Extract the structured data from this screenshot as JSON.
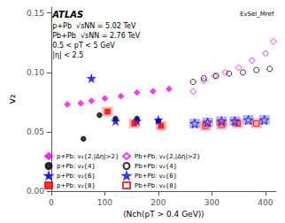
{
  "chart_data": {
    "type": "scatter",
    "xlabel": "⟨Nch(pT > 0.4 GeV)⟩",
    "ylabel": "v₂",
    "xlim": [
      0,
      420
    ],
    "ylim": [
      0,
      0.155
    ],
    "xticks": [
      0,
      100,
      200,
      300,
      400
    ],
    "yticks": [
      {
        "value": 0,
        "label": "0.00"
      },
      0.05,
      {
        "value": 0.1,
        "label": "0.10"
      },
      0.15
    ],
    "grid": false,
    "legend": "lower left",
    "annotations": [
      "ATLAS",
      "EvSel_Mref",
      "p+Pb  √sNN = 5.02 TeV",
      "Pb+Pb  √sNN = 2.76 TeV",
      "0.5 < pT < 5 GeV",
      "|η| < 2.5"
    ],
    "series": [
      {
        "name": "p+Pb: v₂{2,|Δη|>2}",
        "color": "#ff00ff",
        "marker": "diamond",
        "x": [
          30,
          55,
          75,
          100,
          130,
          160,
          190,
          220
        ],
        "values": [
          0.073,
          0.074,
          0.076,
          0.078,
          0.08,
          0.083,
          0.084,
          0.086
        ]
      },
      {
        "name": "p+Pb: v₂{4}",
        "color": "#000000",
        "marker": "circle",
        "x": [
          60,
          90,
          120,
          160,
          200
        ],
        "values": [
          0.044,
          0.064,
          0.061,
          0.061,
          0.059
        ]
      },
      {
        "name": "p+Pb: v₂{6}",
        "color": "#0000ff",
        "marker": "star",
        "x": [
          75,
          120,
          160,
          200
        ],
        "values": [
          0.095,
          0.059,
          0.059,
          0.06
        ]
      },
      {
        "name": "p+Pb: v₂{8}",
        "color": "#ff0000",
        "marker": "square",
        "x": [
          105,
          155,
          205
        ],
        "values": [
          0.067,
          0.057,
          0.055
        ],
        "box_half_width": 10,
        "box_half_height": 0.004
      },
      {
        "name": "Pb+Pb: v₂{2,|Δη|>2}",
        "color": "#ff00ff",
        "marker": "diamond-open",
        "x": [
          265,
          285,
          305,
          325,
          350,
          375,
          400,
          415
        ],
        "values": [
          0.084,
          0.093,
          0.097,
          0.1,
          0.104,
          0.11,
          0.116,
          0.126
        ]
      },
      {
        "name": "Pb+Pb: v₂{4}",
        "color": "#000000",
        "marker": "circle-open",
        "x": [
          265,
          285,
          308,
          332,
          358,
          383,
          408
        ],
        "values": [
          0.092,
          0.095,
          0.097,
          0.099,
          0.1,
          0.102,
          0.103
        ]
      },
      {
        "name": "Pb+Pb: v₂{6}",
        "color": "#0000ff",
        "marker": "star-open",
        "x": [
          268,
          292,
          318,
          343,
          368,
          398
        ],
        "values": [
          0.057,
          0.058,
          0.059,
          0.059,
          0.06,
          0.06
        ],
        "box_half_width": 10,
        "box_half_height": 0.004
      },
      {
        "name": "Pb+Pb: v₂{8}",
        "color": "#ff0000",
        "marker": "square-open",
        "x": [
          288,
          318,
          348,
          383
        ],
        "values": [
          0.055,
          0.056,
          0.057,
          0.057
        ],
        "box_half_width": 10,
        "box_half_height": 0.004
      }
    ]
  }
}
